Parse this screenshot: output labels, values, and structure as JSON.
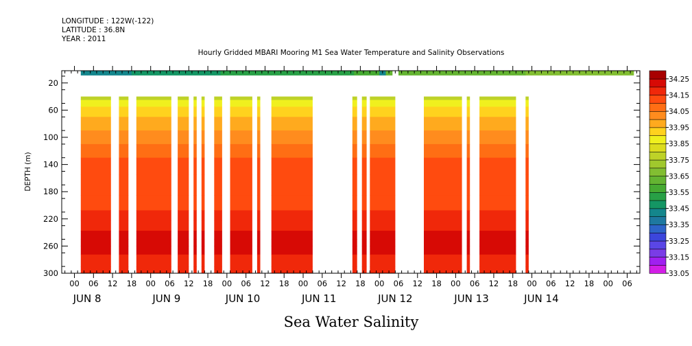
{
  "meta": {
    "longitude": "LONGITUDE : 122W(-122)",
    "latitude": "LATITUDE : 36.8N",
    "year": "YEAR : 2011"
  },
  "chart_data": {
    "type": "heatmap",
    "title": "Hourly Gridded MBARI Mooring M1 Sea Water Temperature and Salinity Observations",
    "bottom_label": "Sea Water Salinity",
    "ylabel": "DEPTH (m)",
    "y_ticks": [
      "20",
      "60",
      "100",
      "140",
      "180",
      "220",
      "260",
      "300"
    ],
    "y_tick_values": [
      20,
      60,
      100,
      140,
      180,
      220,
      260,
      300
    ],
    "ylim": [
      300,
      2
    ],
    "x_unit": "hours since JUN 8 00:00",
    "xlim": [
      -10,
      172
    ],
    "x_ticks": [
      {
        "label": "00",
        "hour": -6
      },
      {
        "label": "06",
        "hour": 0
      },
      {
        "label": "12",
        "hour": 6
      },
      {
        "label": "18",
        "hour": 12
      },
      {
        "label": "00",
        "hour": 18
      },
      {
        "label": "06",
        "hour": 24
      },
      {
        "label": "12",
        "hour": 30
      },
      {
        "label": "18",
        "hour": 36
      },
      {
        "label": "00",
        "hour": 42
      },
      {
        "label": "06",
        "hour": 48
      },
      {
        "label": "12",
        "hour": 54
      },
      {
        "label": "18",
        "hour": 60
      },
      {
        "label": "00",
        "hour": 66
      },
      {
        "label": "06",
        "hour": 72
      },
      {
        "label": "12",
        "hour": 78
      },
      {
        "label": "18",
        "hour": 84
      },
      {
        "label": "00",
        "hour": 90
      },
      {
        "label": "06",
        "hour": 96
      },
      {
        "label": "12",
        "hour": 102
      },
      {
        "label": "18",
        "hour": 108
      },
      {
        "label": "00",
        "hour": 114
      },
      {
        "label": "06",
        "hour": 120
      },
      {
        "label": "12",
        "hour": 126
      },
      {
        "label": "18",
        "hour": 132
      },
      {
        "label": "00",
        "hour": 138
      },
      {
        "label": "06",
        "hour": 144
      },
      {
        "label": "12",
        "hour": 150
      },
      {
        "label": "18",
        "hour": 156
      },
      {
        "label": "00",
        "hour": 162
      },
      {
        "label": "06",
        "hour": 168
      }
    ],
    "day_labels": [
      {
        "label": "JUN  8",
        "hour": -2
      },
      {
        "label": "JUN  9",
        "hour": 23
      },
      {
        "label": "JUN 10",
        "hour": 47
      },
      {
        "label": "JUN 11",
        "hour": 71
      },
      {
        "label": "JUN 12",
        "hour": 95
      },
      {
        "label": "JUN 13",
        "hour": 119
      },
      {
        "label": "JUN 14",
        "hour": 141
      }
    ],
    "colorbar_labels": [
      "34.25",
      "34.15",
      "34.05",
      "33.95",
      "33.85",
      "33.75",
      "33.65",
      "33.55",
      "33.45",
      "33.35",
      "33.25",
      "33.15",
      "33.05"
    ],
    "levels": [
      {
        "min": 33.05,
        "color": "#d21ee6"
      },
      {
        "min": 33.1,
        "color": "#a020f0"
      },
      {
        "min": 33.15,
        "color": "#7a3ce6"
      },
      {
        "min": 33.2,
        "color": "#5a46e6"
      },
      {
        "min": 33.25,
        "color": "#3c46dc"
      },
      {
        "min": 33.3,
        "color": "#2d64c8"
      },
      {
        "min": 33.35,
        "color": "#1e78a0"
      },
      {
        "min": 33.4,
        "color": "#14868c"
      },
      {
        "min": 33.45,
        "color": "#149664"
      },
      {
        "min": 33.5,
        "color": "#28a046"
      },
      {
        "min": 33.55,
        "color": "#46aa32"
      },
      {
        "min": 33.6,
        "color": "#64b432"
      },
      {
        "min": 33.65,
        "color": "#82be32"
      },
      {
        "min": 33.7,
        "color": "#a0c82d"
      },
      {
        "min": 33.75,
        "color": "#bed228"
      },
      {
        "min": 33.8,
        "color": "#dcdc1e"
      },
      {
        "min": 33.85,
        "color": "#f0f01e"
      },
      {
        "min": 33.9,
        "color": "#ffd21e"
      },
      {
        "min": 33.95,
        "color": "#ffaa1e"
      },
      {
        "min": 34.0,
        "color": "#ff8c1e"
      },
      {
        "min": 34.05,
        "color": "#ff6e14"
      },
      {
        "min": 34.1,
        "color": "#ff4b0f"
      },
      {
        "min": 34.15,
        "color": "#f0280a"
      },
      {
        "min": 34.2,
        "color": "#d70a05"
      },
      {
        "min": 34.25,
        "color": "#a80000"
      }
    ],
    "depth_profile": [
      {
        "depth": 40,
        "value": 33.78
      },
      {
        "depth": 50,
        "value": 33.86
      },
      {
        "depth": 60,
        "value": 33.92
      },
      {
        "depth": 80,
        "value": 33.99
      },
      {
        "depth": 100,
        "value": 34.02
      },
      {
        "depth": 120,
        "value": 34.06
      },
      {
        "depth": 140,
        "value": 34.11
      },
      {
        "depth": 170,
        "value": 34.13
      },
      {
        "depth": 200,
        "value": 34.14
      },
      {
        "depth": 215,
        "value": 34.16
      },
      {
        "depth": 230,
        "value": 34.19
      },
      {
        "depth": 245,
        "value": 34.23
      },
      {
        "depth": 255,
        "value": 34.22
      },
      {
        "depth": 265,
        "value": 34.2
      },
      {
        "depth": 280,
        "value": 34.17
      },
      {
        "depth": 300,
        "value": 34.15
      }
    ],
    "surface_depth": 2,
    "surface_values": [
      {
        "hour": -4,
        "value": 33.42
      },
      {
        "hour": 40,
        "value": 33.5
      },
      {
        "hour": 90,
        "value": 33.56
      },
      {
        "hour": 92,
        "value": 33.25
      },
      {
        "hour": 93,
        "value": 33.6
      },
      {
        "hour": 130,
        "value": 33.64
      },
      {
        "hour": 170,
        "value": 33.7
      }
    ],
    "surface_gaps": [
      [
        93.5,
        95
      ]
    ],
    "data_segments": [
      [
        -4,
        5.5
      ],
      [
        8,
        11
      ],
      [
        13.5,
        24.5
      ],
      [
        26.5,
        30
      ],
      [
        31.5,
        32.5
      ],
      [
        34,
        35
      ],
      [
        38,
        40.5
      ],
      [
        43,
        50
      ],
      [
        51.5,
        52.5
      ],
      [
        56,
        69
      ],
      [
        81.5,
        83
      ],
      [
        84.5,
        86
      ],
      [
        87,
        95
      ],
      [
        104,
        116
      ],
      [
        117.5,
        118.5
      ],
      [
        121.5,
        133
      ],
      [
        136,
        137
      ]
    ]
  }
}
